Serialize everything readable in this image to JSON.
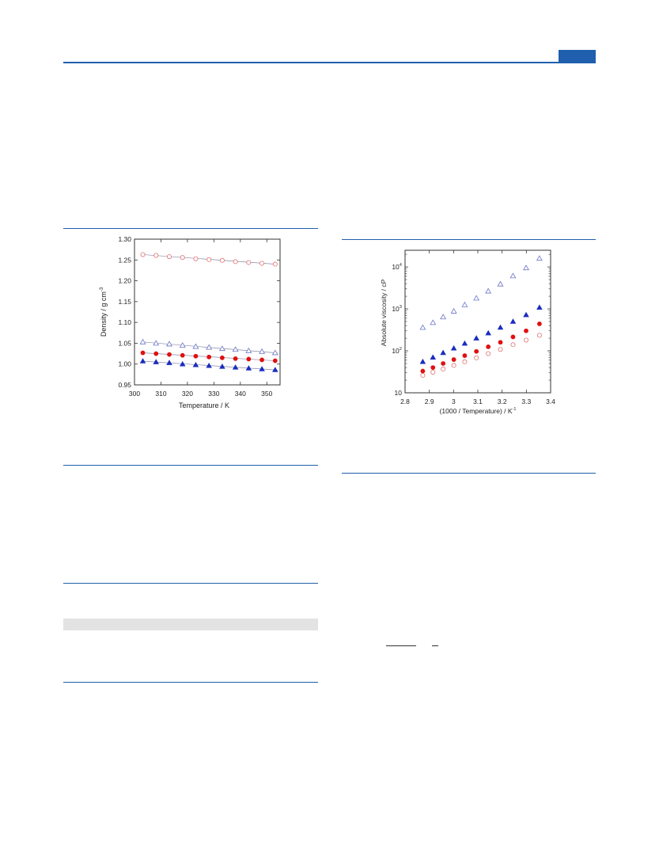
{
  "theme": {
    "accent": "#1f5fad",
    "band": "#e3e3e3"
  },
  "chart_data": [
    {
      "type": "scatter",
      "title": "",
      "xlabel": "Temperature / K",
      "ylabel": "Density / g cm",
      "ylabel_sup": "-3",
      "xlim": [
        300,
        355
      ],
      "ylim": [
        0.95,
        1.3
      ],
      "xticks": [
        300,
        310,
        320,
        330,
        340,
        350
      ],
      "xticklabels": [
        "300",
        "310",
        "320",
        "330",
        "340",
        "350"
      ],
      "yticks": [
        0.95,
        1.0,
        1.05,
        1.1,
        1.15,
        1.2,
        1.25,
        1.3
      ],
      "yticklabels": [
        "0.95",
        "1.00",
        "1.05",
        "1.10",
        "1.15",
        "1.20",
        "1.25",
        "1.30"
      ],
      "grid": false,
      "x": [
        303.15,
        308.15,
        313.15,
        318.15,
        323.15,
        328.15,
        333.15,
        338.15,
        343.15,
        348.15,
        353.15
      ],
      "series": [
        {
          "marker": "circle-open",
          "color": "#e07070",
          "fit_line": true,
          "values": [
            1.263,
            1.261,
            1.258,
            1.256,
            1.253,
            1.251,
            1.249,
            1.246,
            1.244,
            1.242,
            1.24
          ]
        },
        {
          "marker": "triangle-open",
          "color": "#6a75c8",
          "fit_line": true,
          "values": [
            1.053,
            1.05,
            1.048,
            1.045,
            1.042,
            1.04,
            1.037,
            1.035,
            1.032,
            1.03,
            1.027
          ]
        },
        {
          "marker": "circle-filled",
          "color": "#e01010",
          "fit_line": true,
          "values": [
            1.027,
            1.025,
            1.023,
            1.021,
            1.019,
            1.017,
            1.015,
            1.013,
            1.012,
            1.01,
            1.008
          ]
        },
        {
          "marker": "triangle-filled",
          "color": "#1a2dbf",
          "fit_line": true,
          "values": [
            1.007,
            1.005,
            1.003,
            1.0,
            0.998,
            0.996,
            0.994,
            0.992,
            0.99,
            0.988,
            0.986
          ]
        }
      ]
    },
    {
      "type": "scatter",
      "title": "",
      "xlabel": "(1000 / Temperature) / K",
      "xlabel_sup": "-1",
      "ylabel": "Absolute viscosity / cP",
      "yscale": "log",
      "xlim": [
        2.8,
        3.4
      ],
      "ylim": [
        10,
        25000
      ],
      "xticks": [
        2.8,
        2.9,
        3.0,
        3.1,
        3.2,
        3.3,
        3.4
      ],
      "xticklabels": [
        "2.8",
        "2.9",
        "3",
        "3.1",
        "3.2",
        "3.3",
        "3.4"
      ],
      "yticks": [
        10,
        100,
        1000,
        10000
      ],
      "yticklabels": [
        {
          "base": "10",
          "sup": ""
        },
        {
          "base": "10",
          "sup": "2"
        },
        {
          "base": "10",
          "sup": "3"
        },
        {
          "base": "10",
          "sup": "4"
        }
      ],
      "grid": false,
      "x": [
        2.873,
        2.915,
        2.957,
        3.001,
        3.046,
        3.094,
        3.143,
        3.193,
        3.245,
        3.299,
        3.354
      ],
      "series": [
        {
          "marker": "triangle-open",
          "color": "#6a75c8",
          "values": [
            360,
            470,
            640,
            880,
            1250,
            1800,
            2650,
            3900,
            6100,
            9500,
            16000
          ]
        },
        {
          "marker": "triangle-filled",
          "color": "#1a2dbf",
          "values": [
            55,
            70,
            90,
            115,
            150,
            200,
            265,
            360,
            500,
            720,
            1080
          ]
        },
        {
          "marker": "circle-filled",
          "color": "#e01010",
          "values": [
            33,
            40,
            50,
            62,
            77,
            97,
            125,
            160,
            215,
            300,
            440
          ]
        },
        {
          "marker": "circle-open",
          "color": "#e07070",
          "values": [
            26,
            31,
            37,
            45,
            55,
            68,
            86,
            108,
            140,
            180,
            235
          ]
        }
      ]
    }
  ]
}
